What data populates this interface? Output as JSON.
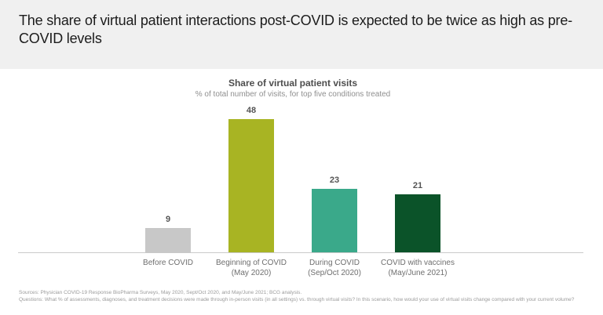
{
  "header": {
    "title": "The share of virtual patient interactions post-COVID is expected to be twice as high as pre-COVID levels"
  },
  "chart_data": {
    "type": "bar",
    "title": "Share of virtual patient visits",
    "subtitle": "% of total number of visits, for top five conditions treated",
    "categories": [
      "Before COVID",
      "Beginning of COVID (May 2020)",
      "During COVID (Sep/Oct 2020)",
      "COVID with vaccines (May/June 2021)"
    ],
    "category_lines": [
      [
        "Before COVID",
        ""
      ],
      [
        "Beginning of COVID",
        "(May 2020)"
      ],
      [
        "During COVID",
        "(Sep/Oct 2020)"
      ],
      [
        "COVID with vaccines",
        "(May/June 2021)"
      ]
    ],
    "values": [
      9,
      48,
      23,
      21
    ],
    "colors": [
      "#c8c8c8",
      "#a8b423",
      "#3aa98a",
      "#0b5329"
    ],
    "unit": "%",
    "ylim": [
      0,
      50
    ],
    "grid": false,
    "value_labels": true,
    "legend": "none",
    "xlabel": "",
    "ylabel": ""
  },
  "footnotes": {
    "sources": "Sources: Physician COVID-19 Response BioPharma Surveys, May 2020, Sept/Oct 2020, and May/June 2021; BCG analysis.",
    "questions": "Questions: What % of assessments, diagnoses, and treatment decisions were made through in-person visits (in all settings) vs. through virtual visits? In this scenario, how would your use of virtual visits change compared with your current volume?"
  }
}
